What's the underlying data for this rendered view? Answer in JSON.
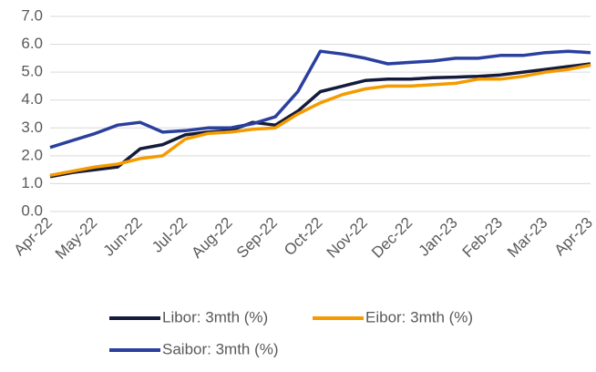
{
  "chart_data": {
    "type": "line",
    "categories": [
      "Apr-22",
      null,
      "May-22",
      null,
      "Jun-22",
      null,
      "Jul-22",
      null,
      "Aug-22",
      null,
      "Sep-22",
      null,
      "Oct-22",
      null,
      "Nov-22",
      null,
      "Dec-22",
      null,
      "Jan-23",
      null,
      "Feb-23",
      null,
      "Mar-23",
      null,
      "Apr-23"
    ],
    "series": [
      {
        "name": "Libor: 3mth (%)",
        "color": "#141b3c",
        "values": [
          1.25,
          1.4,
          1.5,
          1.6,
          2.25,
          2.4,
          2.75,
          2.85,
          2.9,
          3.2,
          3.1,
          3.6,
          4.3,
          4.5,
          4.7,
          4.75,
          4.75,
          4.8,
          4.82,
          4.85,
          4.9,
          5.0,
          5.1,
          5.2,
          5.3
        ]
      },
      {
        "name": "Eibor: 3mth (%)",
        "color": "#f59b00",
        "values": [
          1.3,
          1.45,
          1.6,
          1.7,
          1.9,
          2.0,
          2.6,
          2.8,
          2.85,
          2.95,
          3.0,
          3.5,
          3.9,
          4.2,
          4.4,
          4.5,
          4.5,
          4.55,
          4.6,
          4.75,
          4.75,
          4.85,
          5.0,
          5.1,
          5.25
        ]
      },
      {
        "name": "Saibor: 3mth (%)",
        "color": "#2a3f9e",
        "values": [
          2.3,
          2.55,
          2.8,
          3.1,
          3.2,
          2.85,
          2.9,
          3.0,
          3.0,
          3.15,
          3.4,
          4.3,
          5.75,
          5.65,
          5.5,
          5.3,
          5.35,
          5.4,
          5.5,
          5.5,
          5.6,
          5.6,
          5.7,
          5.75,
          5.7
        ]
      }
    ],
    "ylim": [
      0,
      7
    ],
    "yticks": [
      {
        "value": 0,
        "label": "0.0"
      },
      {
        "value": 1,
        "label": "1.0"
      },
      {
        "value": 2,
        "label": "2.0"
      },
      {
        "value": 3,
        "label": "3.0"
      },
      {
        "value": 4,
        "label": "4.0"
      },
      {
        "value": 5,
        "label": "5.0"
      },
      {
        "value": 6,
        "label": "6.0"
      },
      {
        "value": 7,
        "label": "7.0"
      }
    ],
    "grid": true
  }
}
